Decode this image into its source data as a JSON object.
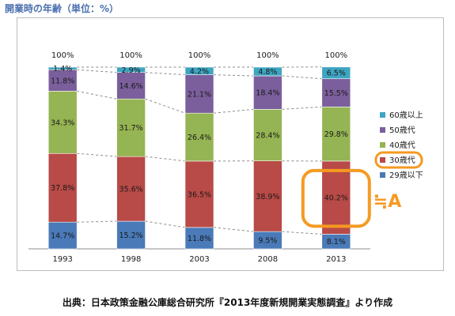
{
  "header": {
    "title": "開業時の年齢（単位：%）"
  },
  "footer": {
    "source": "出典：日本政策金融公庫総合研究所『2013年度新規開業実態調査』より作成"
  },
  "chart_data": {
    "type": "bar",
    "stacked": true,
    "categories": [
      "1993",
      "1998",
      "2003",
      "2008",
      "2013"
    ],
    "totals": [
      "100%",
      "100%",
      "100%",
      "100%",
      "100%"
    ],
    "series": [
      {
        "name": "29歳以下",
        "color": "#4a7ab8",
        "values": [
          14.7,
          15.2,
          11.8,
          9.5,
          8.1
        ]
      },
      {
        "name": "30歳代",
        "color": "#b84a47",
        "values": [
          37.8,
          35.6,
          36.5,
          38.9,
          40.2
        ]
      },
      {
        "name": "40歳代",
        "color": "#95b453",
        "values": [
          34.3,
          31.7,
          26.4,
          28.4,
          29.8
        ]
      },
      {
        "name": "50歳代",
        "color": "#7b5f9c",
        "values": [
          11.8,
          14.6,
          21.1,
          18.4,
          15.5
        ]
      },
      {
        "name": "60歳以上",
        "color": "#3ea5c2",
        "values": [
          1.4,
          2.9,
          4.2,
          4.8,
          6.5
        ]
      }
    ],
    "ylim": [
      0,
      100
    ],
    "legend_position": "right",
    "highlight": {
      "series": "30歳代",
      "category": "2013",
      "label": "≒A",
      "color": "#f59a22"
    }
  }
}
